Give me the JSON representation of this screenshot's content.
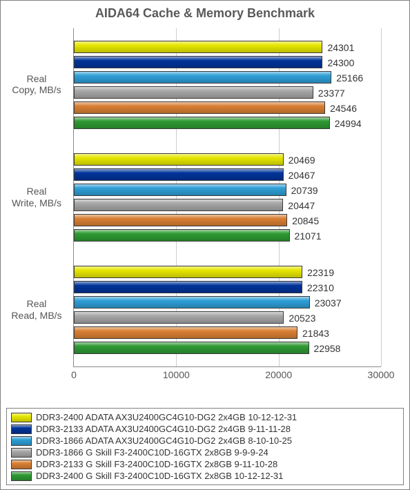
{
  "chart": {
    "title": "AIDA64 Cache & Memory Benchmark",
    "title_fontsize": 18,
    "title_color": "#595959",
    "background_color": "#ffffff",
    "border_color": "#808080",
    "xaxis": {
      "min": 0,
      "max": 30000,
      "ticks": [
        0,
        10000,
        20000,
        30000
      ],
      "grid_color": "#cccccc",
      "tick_fontsize": 14
    },
    "series": [
      {
        "id": "s1",
        "label": "DDR3-2400 ADATA AX3U2400GC4G10-DG2 2x4GB 10-12-12-31",
        "color": "#e6e600"
      },
      {
        "id": "s2",
        "label": "DDR3-2133 ADATA AX3U2400GC4G10-DG2 2x4GB 9-11-11-28",
        "color": "#003399"
      },
      {
        "id": "s3",
        "label": "DDR3-1866 ADATA AX3U2400GC4G10-DG2 2x4GB 8-10-10-25",
        "color": "#2e9ed6"
      },
      {
        "id": "s4",
        "label": "DDR3-1866 G Skill F3-2400C10D-16GTX 2x8GB 9-9-9-24",
        "color": "#a6a6a6"
      },
      {
        "id": "s5",
        "label": "DDR3-2133 G Skill F3-2400C10D-16GTX 2x8GB 9-11-10-28",
        "color": "#d97f33"
      },
      {
        "id": "s6",
        "label": "DDR3-2400 G Skill F3-2400C10D-16GTX 2x8GB 10-12-12-31",
        "color": "#2e9933"
      }
    ],
    "groups": [
      {
        "label_line1": "Real",
        "label_line2": "Copy, MB/s",
        "values": {
          "s1": 24301,
          "s2": 24300,
          "s3": 25166,
          "s4": 23377,
          "s5": 24546,
          "s6": 24994
        }
      },
      {
        "label_line1": "Real",
        "label_line2": "Write, MB/s",
        "values": {
          "s1": 20469,
          "s2": 20467,
          "s3": 20739,
          "s4": 20447,
          "s5": 20845,
          "s6": 21071
        }
      },
      {
        "label_line1": "Real",
        "label_line2": "Read, MB/s",
        "values": {
          "s1": 22319,
          "s2": 22310,
          "s3": 23037,
          "s4": 20523,
          "s5": 21843,
          "s6": 22958
        }
      }
    ]
  }
}
